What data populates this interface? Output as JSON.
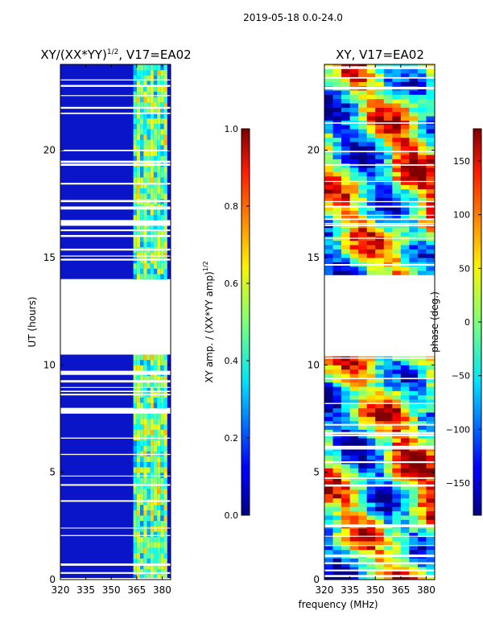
{
  "figure": {
    "suptitle": "2019-05-18 0.0-24.0",
    "xlabel_shared": "frequency (MHz)"
  },
  "chart_data": [
    {
      "type": "heatmap",
      "name": "amplitude-panel",
      "title_prefix": "XY/(XX*YY)",
      "title_superscript": "1/2",
      "title_suffix": ", V17=EA02",
      "ylabel": "UT (hours)",
      "xlim": [
        320,
        385
      ],
      "ylim": [
        0,
        24
      ],
      "xticks": [
        320,
        335,
        350,
        365,
        380
      ],
      "yticks": [
        0,
        5,
        10,
        15,
        20
      ],
      "gaps_hours": [
        [
          10.5,
          14.1
        ],
        [
          7.8,
          8.1
        ],
        [
          16.6,
          16.8
        ]
      ],
      "colorbar": {
        "label_prefix": "XY amp. / (XX*YY amp)",
        "label_superscript": "1/2",
        "range": [
          0.0,
          1.0
        ],
        "ticks": [
          0.0,
          0.2,
          0.4,
          0.6,
          0.8,
          1.0
        ],
        "tick_labels": [
          "0.0",
          "0.2",
          "0.4",
          "0.6",
          "0.8",
          "1.0"
        ]
      }
    },
    {
      "type": "heatmap",
      "name": "phase-panel",
      "title": "XY, V17=EA02",
      "xlim": [
        320,
        385
      ],
      "ylim": [
        0,
        24
      ],
      "xticks": [
        320,
        335,
        350,
        365,
        380
      ],
      "yticks": [
        0,
        5,
        10,
        15,
        20
      ],
      "gaps_hours": [
        [
          10.5,
          14.1
        ]
      ],
      "colorbar": {
        "label": "phase (deg.)",
        "range": [
          -180,
          180
        ],
        "ticks": [
          -150,
          -100,
          -50,
          0,
          50,
          100,
          150
        ],
        "tick_labels": [
          "−150",
          "−100",
          "−50",
          "0",
          "50",
          "100",
          "150"
        ]
      }
    }
  ]
}
